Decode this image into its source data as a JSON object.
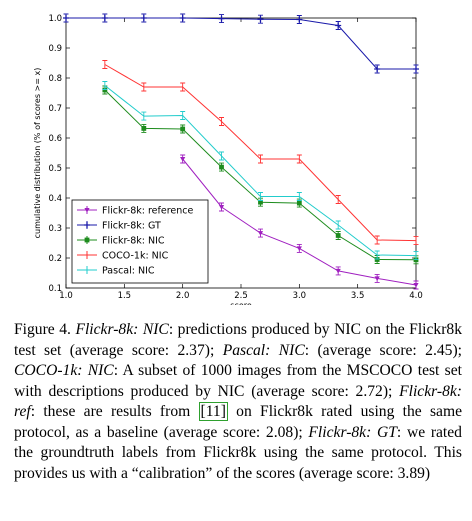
{
  "chart_data": {
    "type": "line",
    "title": "",
    "xlabel": "score",
    "ylabel": "cumulative distribution (% of scores >= x)",
    "xlim": [
      1.0,
      4.0
    ],
    "ylim": [
      0.1,
      1.0
    ],
    "xticks": [
      "1.0",
      "1.5",
      "2.0",
      "2.5",
      "3.0",
      "3.5",
      "4.0"
    ],
    "yticks": [
      "0.1",
      "0.2",
      "0.3",
      "0.4",
      "0.5",
      "0.6",
      "0.7",
      "0.8",
      "0.9",
      "1.0"
    ],
    "legend_position": "bottom-left",
    "grid": false,
    "series": [
      {
        "name": "Flickr-8k: reference",
        "color": "#a020c0",
        "marker": "triangle",
        "x": [
          2.0,
          2.333,
          2.667,
          3.0,
          3.333,
          3.667,
          4.0
        ],
        "y": [
          0.53,
          0.37,
          0.283,
          0.232,
          0.157,
          0.132,
          0.11
        ]
      },
      {
        "name": "Flickr-8k: GT",
        "color": "#1a1aaa",
        "marker": "plus",
        "x": [
          1.0,
          1.333,
          1.667,
          2.0,
          2.333,
          2.667,
          3.0,
          3.333,
          3.667,
          4.0
        ],
        "y": [
          1.0,
          1.0,
          1.0,
          1.0,
          0.998,
          0.996,
          0.995,
          0.975,
          0.83,
          0.83
        ]
      },
      {
        "name": "Flickr-8k: NIC",
        "color": "#1e8c1e",
        "marker": "square",
        "x": [
          1.333,
          1.667,
          2.0,
          2.333,
          2.667,
          3.0,
          3.333,
          3.667,
          4.0
        ],
        "y": [
          0.76,
          0.632,
          0.63,
          0.503,
          0.386,
          0.383,
          0.275,
          0.195,
          0.194
        ]
      },
      {
        "name": "COCO-1k: NIC",
        "color": "#ff3333",
        "marker": "none",
        "x": [
          1.333,
          1.667,
          2.0,
          2.333,
          2.667,
          3.0,
          3.333,
          3.667,
          4.0
        ],
        "y": [
          0.845,
          0.77,
          0.77,
          0.655,
          0.53,
          0.53,
          0.395,
          0.26,
          0.258
        ]
      },
      {
        "name": "Pascal: NIC",
        "color": "#22cccc",
        "marker": "none",
        "x": [
          1.333,
          1.667,
          2.0,
          2.333,
          2.667,
          3.0,
          3.333,
          3.667,
          4.0
        ],
        "y": [
          0.775,
          0.673,
          0.675,
          0.54,
          0.405,
          0.405,
          0.31,
          0.21,
          0.208
        ]
      }
    ]
  },
  "caption": {
    "fig_label": "Figure 4.",
    "p1_label": "Flickr-8k: NIC",
    "p1_text": ": predictions produced by NIC on the Flickr8k test set (average score: 2.37); ",
    "p2_label": "Pascal: NIC",
    "p2_text": ": (average score: 2.45); ",
    "p3_label": "COCO-1k: NIC",
    "p3_text": ": A subset of 1000 images from the MSCOCO test set with descriptions produced by NIC (average score: 2.72); ",
    "p4_label": "Flickr-8k: ref",
    "p4_text_a": ": these are results from ",
    "p4_ref": "[11]",
    "p4_text_b": " on Flickr8k rated using the same protocol, as a baseline (average score: 2.08); ",
    "p5_label": "Flickr-8k: GT",
    "p5_text": ": we rated the groundtruth labels from Flickr8k using the same protocol. This provides us with a “calibration” of the scores (average score: 3.89)"
  }
}
